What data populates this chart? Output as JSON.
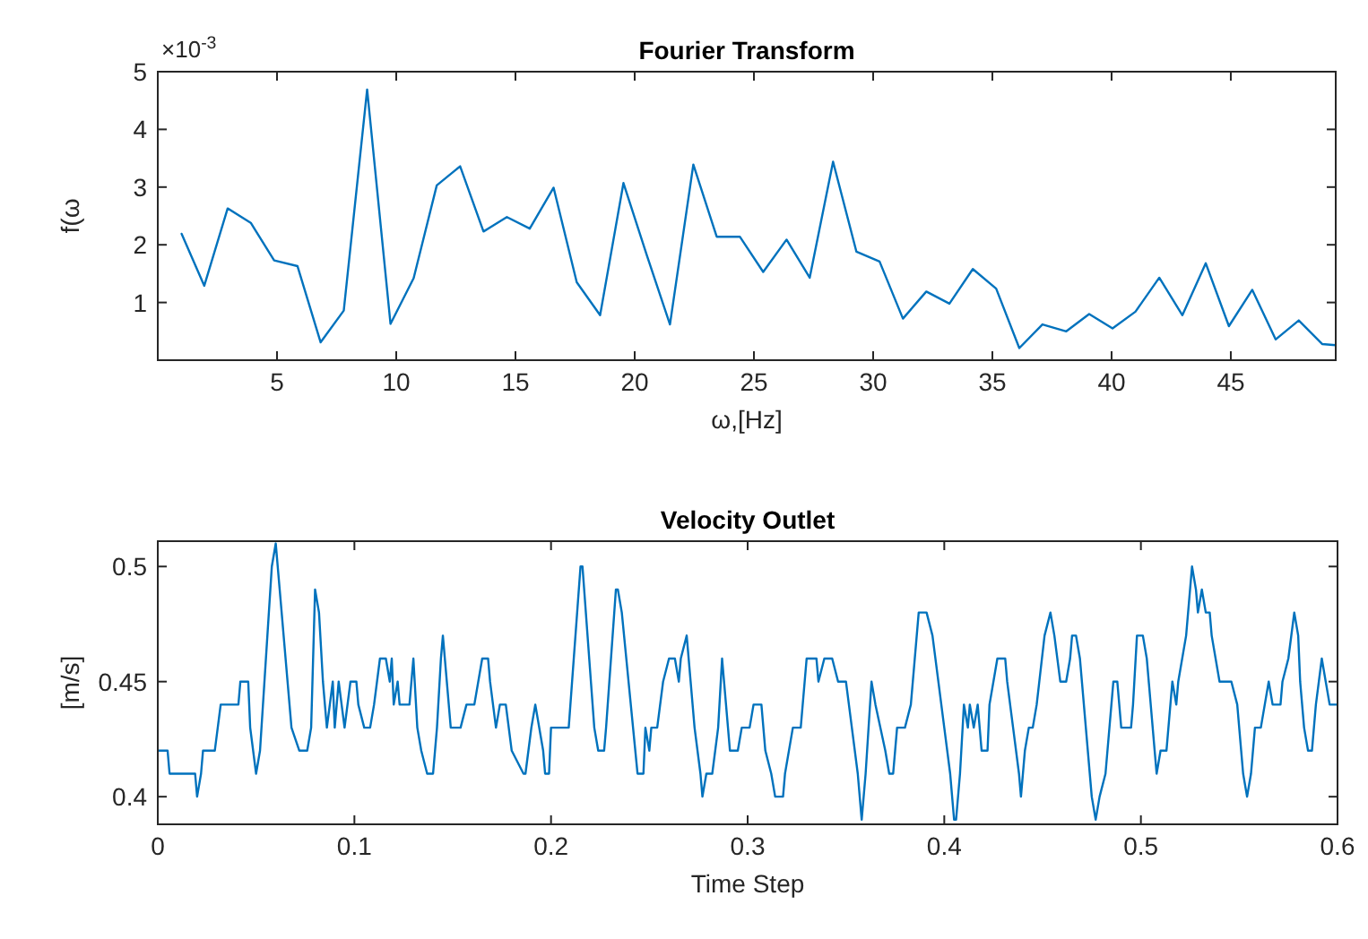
{
  "chart_data": [
    {
      "type": "line",
      "title": "Fourier Transform",
      "xlabel": "ω,[Hz]",
      "ylabel": "f(ω",
      "annotations": [
        "×10$^{-3}$"
      ],
      "xlim": [
        0,
        49.4
      ],
      "xticks": [
        5,
        10,
        15,
        20,
        25,
        30,
        35,
        40,
        45
      ],
      "ylim": [
        0,
        5
      ],
      "yticks": [
        1,
        2,
        3,
        4,
        5
      ],
      "grid": false,
      "marker": "none",
      "line_style": "solid",
      "series": [
        {
          "color": "#0072bd",
          "x": [
            1.0,
            1.95,
            2.93,
            3.9,
            4.88,
            5.86,
            6.83,
            7.8,
            8.78,
            9.76,
            10.73,
            11.7,
            12.68,
            13.66,
            14.64,
            15.6,
            16.6,
            17.57,
            18.55,
            19.53,
            20.5,
            21.48,
            22.46,
            23.44,
            24.41,
            25.39,
            26.37,
            27.34,
            28.32,
            29.3,
            30.27,
            31.25,
            32.23,
            33.2,
            34.18,
            35.16,
            36.13,
            37.1,
            38.1,
            39.06,
            40.04,
            41.0,
            42.0,
            42.97,
            43.95,
            44.92,
            45.9,
            46.88,
            47.85,
            48.83,
            49.4
          ],
          "values": [
            2.19,
            1.29,
            2.63,
            2.38,
            1.73,
            1.63,
            0.31,
            0.86,
            4.69,
            0.63,
            1.42,
            3.03,
            3.36,
            2.23,
            2.48,
            2.28,
            2.99,
            1.35,
            0.78,
            3.07,
            1.83,
            0.62,
            3.39,
            2.14,
            2.14,
            1.53,
            2.09,
            1.43,
            3.44,
            1.88,
            1.71,
            0.72,
            1.19,
            0.98,
            1.58,
            1.24,
            0.21,
            0.62,
            0.5,
            0.8,
            0.55,
            0.84,
            1.43,
            0.78,
            1.68,
            0.59,
            1.22,
            0.36,
            0.69,
            0.28,
            0.26
          ]
        }
      ]
    },
    {
      "type": "line",
      "title": "Velocity Outlet",
      "xlabel": "Time Step",
      "ylabel": "[m/s]",
      "xlim": [
        0,
        0.6
      ],
      "xticks": [
        0,
        0.1,
        0.2,
        0.3,
        0.4,
        0.5,
        0.6
      ],
      "ylim": [
        0.388,
        0.511
      ],
      "yticks": [
        0.4,
        0.45,
        0.5
      ],
      "grid": false,
      "marker": "none",
      "line_style": "solid",
      "series": [
        {
          "color": "#0072bd",
          "x": [
            0,
            0.005,
            0.006,
            0.019,
            0.02,
            0.022,
            0.023,
            0.029,
            0.032,
            0.041,
            0.042,
            0.046,
            0.047,
            0.05,
            0.052,
            0.058,
            0.06,
            0.062,
            0.066,
            0.068,
            0.072,
            0.076,
            0.078,
            0.08,
            0.082,
            0.084,
            0.086,
            0.089,
            0.09,
            0.092,
            0.095,
            0.098,
            0.101,
            0.102,
            0.105,
            0.108,
            0.11,
            0.113,
            0.116,
            0.118,
            0.119,
            0.12,
            0.122,
            0.123,
            0.128,
            0.13,
            0.132,
            0.134,
            0.137,
            0.14,
            0.142,
            0.144,
            0.145,
            0.147,
            0.149,
            0.154,
            0.157,
            0.161,
            0.165,
            0.168,
            0.169,
            0.172,
            0.174,
            0.177,
            0.18,
            0.186,
            0.187,
            0.19,
            0.192,
            0.196,
            0.197,
            0.199,
            0.2,
            0.209,
            0.215,
            0.216,
            0.222,
            0.224,
            0.227,
            0.228,
            0.233,
            0.234,
            0.236,
            0.244,
            0.247,
            0.248,
            0.25,
            0.251,
            0.254,
            0.257,
            0.26,
            0.263,
            0.265,
            0.266,
            0.269,
            0.271,
            0.273,
            0.276,
            0.277,
            0.279,
            0.282,
            0.285,
            0.287,
            0.289,
            0.291,
            0.295,
            0.297,
            0.301,
            0.303,
            0.307,
            0.309,
            0.312,
            0.314,
            0.318,
            0.319,
            0.323,
            0.327,
            0.33,
            0.335,
            0.336,
            0.339,
            0.343,
            0.346,
            0.35,
            0.353,
            0.356,
            0.358,
            0.36,
            0.363,
            0.365,
            0.37,
            0.372,
            0.374,
            0.375,
            0.376,
            0.38,
            0.383,
            0.387,
            0.391,
            0.394,
            0.4,
            0.403,
            0.405,
            0.406,
            0.408,
            0.41,
            0.412,
            0.413,
            0.415,
            0.417,
            0.419,
            0.422,
            0.423,
            0.425,
            0.427,
            0.431,
            0.432,
            0.435,
            0.438,
            0.439,
            0.441,
            0.443,
            0.445,
            0.447,
            0.451,
            0.454,
            0.456,
            0.459,
            0.462,
            0.464,
            0.465,
            0.467,
            0.469,
            0.472,
            0.475,
            0.477,
            0.479,
            0.482,
            0.485,
            0.486,
            0.488,
            0.49,
            0.495,
            0.496,
            0.498,
            0.501,
            0.503,
            0.507,
            0.508,
            0.51,
            0.513,
            0.515,
            0.516,
            0.518,
            0.519,
            0.523,
            0.526,
            0.528,
            0.529,
            0.531,
            0.533,
            0.535,
            0.536,
            0.54,
            0.546,
            0.549,
            0.551,
            0.552,
            0.554,
            0.556,
            0.558,
            0.561,
            0.563,
            0.565,
            0.567,
            0.571,
            0.572,
            0.575,
            0.578,
            0.58,
            0.581,
            0.583,
            0.585,
            0.587,
            0.589,
            0.592,
            0.594,
            0.596,
            0.6
          ],
          "values": [
            0.42,
            0.42,
            0.41,
            0.41,
            0.4,
            0.41,
            0.42,
            0.42,
            0.44,
            0.44,
            0.45,
            0.45,
            0.43,
            0.41,
            0.42,
            0.5,
            0.51,
            0.49,
            0.45,
            0.43,
            0.42,
            0.42,
            0.43,
            0.49,
            0.48,
            0.45,
            0.43,
            0.45,
            0.43,
            0.45,
            0.43,
            0.45,
            0.45,
            0.44,
            0.43,
            0.43,
            0.44,
            0.46,
            0.46,
            0.45,
            0.46,
            0.44,
            0.45,
            0.44,
            0.44,
            0.46,
            0.43,
            0.42,
            0.41,
            0.41,
            0.43,
            0.46,
            0.47,
            0.45,
            0.43,
            0.43,
            0.44,
            0.44,
            0.46,
            0.46,
            0.45,
            0.43,
            0.44,
            0.44,
            0.42,
            0.41,
            0.41,
            0.43,
            0.44,
            0.42,
            0.41,
            0.41,
            0.43,
            0.43,
            0.5,
            0.5,
            0.43,
            0.42,
            0.42,
            0.43,
            0.49,
            0.49,
            0.48,
            0.41,
            0.41,
            0.43,
            0.42,
            0.43,
            0.43,
            0.45,
            0.46,
            0.46,
            0.45,
            0.46,
            0.47,
            0.45,
            0.43,
            0.41,
            0.4,
            0.41,
            0.41,
            0.43,
            0.46,
            0.44,
            0.42,
            0.42,
            0.43,
            0.43,
            0.44,
            0.44,
            0.42,
            0.41,
            0.4,
            0.4,
            0.41,
            0.43,
            0.43,
            0.46,
            0.46,
            0.45,
            0.46,
            0.46,
            0.45,
            0.45,
            0.43,
            0.41,
            0.39,
            0.41,
            0.45,
            0.44,
            0.42,
            0.41,
            0.41,
            0.42,
            0.43,
            0.43,
            0.44,
            0.48,
            0.48,
            0.47,
            0.43,
            0.41,
            0.39,
            0.39,
            0.41,
            0.44,
            0.43,
            0.44,
            0.43,
            0.44,
            0.42,
            0.42,
            0.44,
            0.45,
            0.46,
            0.46,
            0.45,
            0.43,
            0.41,
            0.4,
            0.42,
            0.43,
            0.43,
            0.44,
            0.47,
            0.48,
            0.47,
            0.45,
            0.45,
            0.46,
            0.47,
            0.47,
            0.46,
            0.43,
            0.4,
            0.39,
            0.4,
            0.41,
            0.44,
            0.45,
            0.45,
            0.43,
            0.43,
            0.44,
            0.47,
            0.47,
            0.46,
            0.42,
            0.41,
            0.42,
            0.42,
            0.44,
            0.45,
            0.44,
            0.45,
            0.47,
            0.5,
            0.49,
            0.48,
            0.49,
            0.48,
            0.48,
            0.47,
            0.45,
            0.45,
            0.44,
            0.42,
            0.41,
            0.4,
            0.41,
            0.43,
            0.43,
            0.44,
            0.45,
            0.44,
            0.44,
            0.45,
            0.46,
            0.48,
            0.47,
            0.45,
            0.43,
            0.42,
            0.42,
            0.44,
            0.46,
            0.45,
            0.44,
            0.44
          ]
        }
      ]
    }
  ]
}
